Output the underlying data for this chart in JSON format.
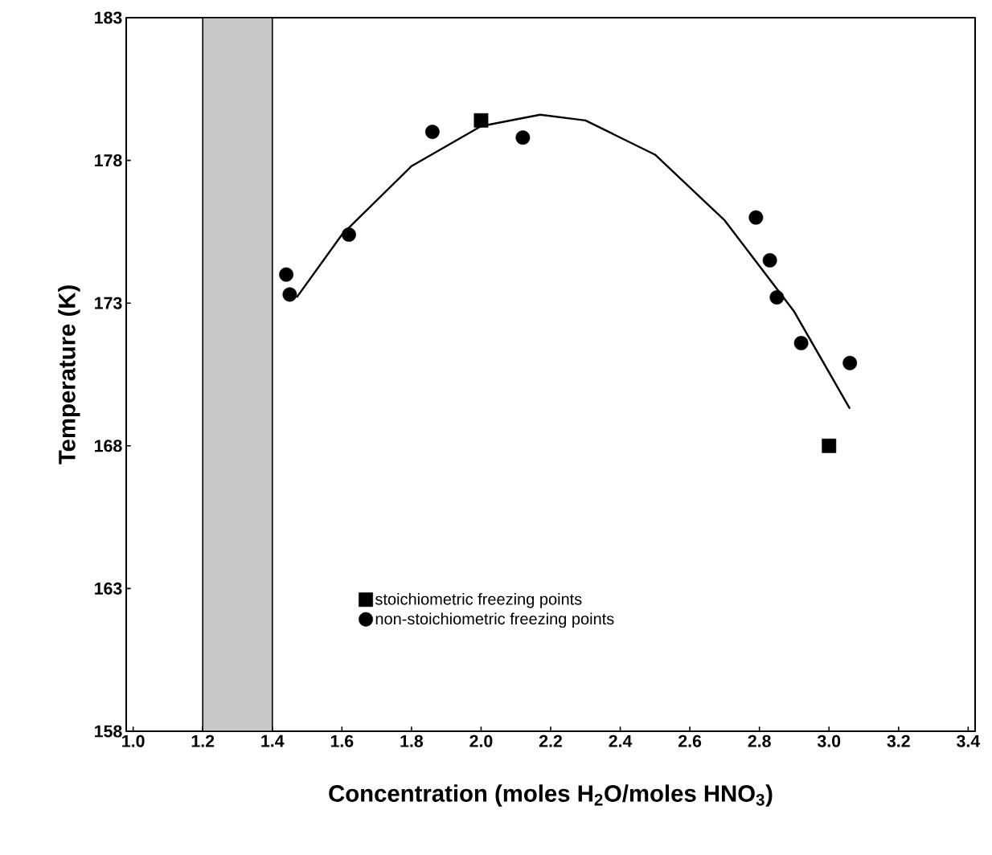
{
  "chart_data": {
    "type": "scatter",
    "xlabel": "Concentration (moles H$_{2}$O/moles HNO$_{3}$)",
    "ylabel": "Temperature (K)",
    "xlim": [
      0.98,
      3.42
    ],
    "ylim": [
      158,
      183
    ],
    "xticks": [
      {
        "value": 1.0,
        "label": "1.0"
      },
      {
        "value": 1.2,
        "label": "1.2"
      },
      {
        "value": 1.4,
        "label": "1.4"
      },
      {
        "value": 1.6,
        "label": "1.6"
      },
      {
        "value": 1.8,
        "label": "1.8"
      },
      {
        "value": 2.0,
        "label": "2.0"
      },
      {
        "value": 2.2,
        "label": "2.2"
      },
      {
        "value": 2.4,
        "label": "2.4"
      },
      {
        "value": 2.6,
        "label": "2.6"
      },
      {
        "value": 2.8,
        "label": "2.8"
      },
      {
        "value": 3.0,
        "label": "3.0"
      },
      {
        "value": 3.2,
        "label": "3.2"
      },
      {
        "value": 3.4,
        "label": "3.4"
      }
    ],
    "yticks": [
      158,
      163,
      168,
      173,
      178,
      183
    ],
    "grid": false,
    "legend": "bottom",
    "bands": [
      {
        "axis": "x",
        "from": 1.2,
        "to": 1.4,
        "color": "#c8c8c8"
      }
    ],
    "series": [
      {
        "name": "stoichiometric freezing points",
        "marker": "square",
        "color": "#000000",
        "x": [
          2.0,
          3.0
        ],
        "values": [
          179.4,
          168.0
        ]
      },
      {
        "name": "non-stoichiometric freezing points",
        "marker": "circle",
        "color": "#000000",
        "x": [
          1.44,
          1.45,
          1.62,
          1.86,
          2.12,
          2.79,
          2.83,
          2.85,
          2.92,
          3.06
        ],
        "values": [
          174.0,
          173.3,
          175.4,
          179.0,
          178.8,
          176.0,
          174.5,
          173.2,
          171.6,
          170.9
        ]
      },
      {
        "type": "line",
        "marker": "none",
        "line_style": "solid",
        "color": "#000000",
        "x": [
          1.47,
          1.6,
          1.8,
          2.0,
          2.17,
          2.3,
          2.5,
          2.7,
          2.9,
          3.06
        ],
        "values": [
          173.2,
          175.4,
          177.8,
          179.2,
          179.6,
          179.4,
          178.2,
          175.9,
          172.7,
          169.3
        ]
      }
    ]
  }
}
